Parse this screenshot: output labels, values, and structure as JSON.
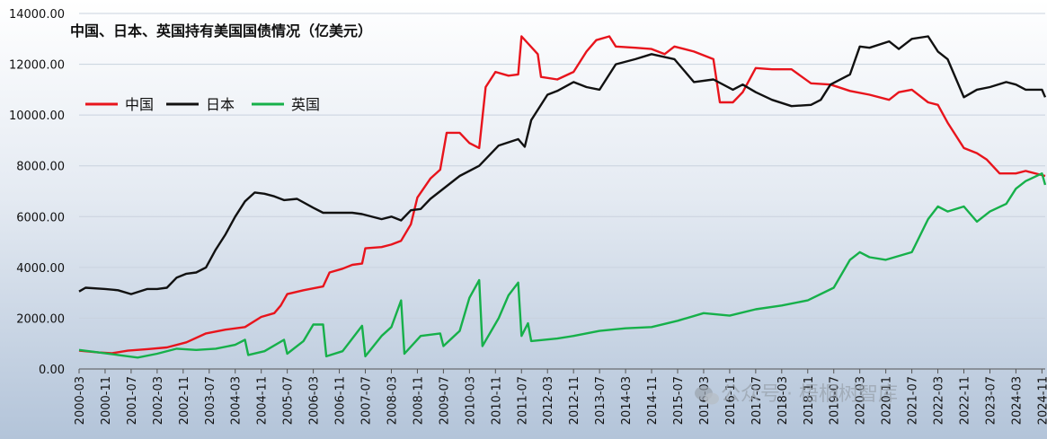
{
  "chart_data": {
    "type": "line",
    "title": "中国、日本、英国持有美国国债情况（亿美元）",
    "xlabel": "",
    "ylabel": "",
    "ylim": [
      0,
      14000
    ],
    "y_ticks": [
      "0.00",
      "2000.00",
      "4000.00",
      "6000.00",
      "8000.00",
      "10000.00",
      "12000.00",
      "14000.00"
    ],
    "x_tick_labels": [
      "2000-03",
      "2000-11",
      "2001-07",
      "2002-03",
      "2002-11",
      "2003-07",
      "2004-03",
      "2004-11",
      "2005-07",
      "2006-03",
      "2006-11",
      "2007-07",
      "2008-03",
      "2008-11",
      "2009-07",
      "2010-03",
      "2010-11",
      "2011-07",
      "2012-03",
      "2012-11",
      "2013-07",
      "2014-03",
      "2014-11",
      "2015-07",
      "2016-03",
      "2016-11",
      "2017-07",
      "2018-03",
      "2018-11",
      "2019-07",
      "2020-03",
      "2020-11",
      "2021-07",
      "2022-03",
      "2022-11",
      "2023-07",
      "2024-03",
      "2024-11"
    ],
    "x_range": [
      "2000-03",
      "2024-12"
    ],
    "grid": "horizontal",
    "legend_position": "top-left",
    "background": "gradient-blue",
    "series": [
      {
        "name": "中国",
        "color": "#e8141c",
        "points": [
          [
            "2000-03",
            720
          ],
          [
            "2000-09",
            650
          ],
          [
            "2001-01",
            620
          ],
          [
            "2001-06",
            720
          ],
          [
            "2001-12",
            780
          ],
          [
            "2002-06",
            850
          ],
          [
            "2002-12",
            1050
          ],
          [
            "2003-06",
            1400
          ],
          [
            "2003-12",
            1550
          ],
          [
            "2004-06",
            1650
          ],
          [
            "2004-11",
            2050
          ],
          [
            "2005-03",
            2200
          ],
          [
            "2005-05",
            2500
          ],
          [
            "2005-07",
            2950
          ],
          [
            "2005-12",
            3100
          ],
          [
            "2006-06",
            3250
          ],
          [
            "2006-08",
            3800
          ],
          [
            "2006-12",
            3950
          ],
          [
            "2007-03",
            4100
          ],
          [
            "2007-06",
            4150
          ],
          [
            "2007-07",
            4750
          ],
          [
            "2007-12",
            4800
          ],
          [
            "2008-03",
            4900
          ],
          [
            "2008-06",
            5050
          ],
          [
            "2008-09",
            5700
          ],
          [
            "2008-11",
            6750
          ],
          [
            "2009-03",
            7500
          ],
          [
            "2009-06",
            7850
          ],
          [
            "2009-08",
            9300
          ],
          [
            "2009-12",
            9300
          ],
          [
            "2010-03",
            8900
          ],
          [
            "2010-06",
            8700
          ],
          [
            "2010-08",
            11100
          ],
          [
            "2010-11",
            11700
          ],
          [
            "2011-03",
            11550
          ],
          [
            "2011-06",
            11600
          ],
          [
            "2011-07",
            13100
          ],
          [
            "2011-12",
            12400
          ],
          [
            "2012-01",
            11500
          ],
          [
            "2012-06",
            11400
          ],
          [
            "2012-11",
            11700
          ],
          [
            "2013-03",
            12500
          ],
          [
            "2013-06",
            12950
          ],
          [
            "2013-10",
            13100
          ],
          [
            "2013-12",
            12700
          ],
          [
            "2014-06",
            12650
          ],
          [
            "2014-11",
            12600
          ],
          [
            "2015-03",
            12400
          ],
          [
            "2015-06",
            12700
          ],
          [
            "2015-12",
            12500
          ],
          [
            "2016-06",
            12200
          ],
          [
            "2016-08",
            10500
          ],
          [
            "2016-12",
            10500
          ],
          [
            "2017-03",
            10900
          ],
          [
            "2017-07",
            11850
          ],
          [
            "2017-12",
            11800
          ],
          [
            "2018-06",
            11800
          ],
          [
            "2018-12",
            11250
          ],
          [
            "2019-06",
            11200
          ],
          [
            "2019-12",
            10950
          ],
          [
            "2020-06",
            10800
          ],
          [
            "2020-12",
            10600
          ],
          [
            "2021-03",
            10900
          ],
          [
            "2021-07",
            11000
          ],
          [
            "2021-12",
            10500
          ],
          [
            "2022-03",
            10400
          ],
          [
            "2022-06",
            9700
          ],
          [
            "2022-11",
            8700
          ],
          [
            "2023-03",
            8500
          ],
          [
            "2023-06",
            8250
          ],
          [
            "2023-10",
            7700
          ],
          [
            "2024-03",
            7700
          ],
          [
            "2024-06",
            7800
          ],
          [
            "2024-12",
            7600
          ]
        ]
      },
      {
        "name": "日本",
        "color": "#111111",
        "points": [
          [
            "2000-03",
            3050
          ],
          [
            "2000-05",
            3200
          ],
          [
            "2000-11",
            3150
          ],
          [
            "2001-03",
            3100
          ],
          [
            "2001-07",
            2950
          ],
          [
            "2001-12",
            3150
          ],
          [
            "2002-03",
            3150
          ],
          [
            "2002-06",
            3200
          ],
          [
            "2002-09",
            3600
          ],
          [
            "2002-12",
            3750
          ],
          [
            "2003-03",
            3800
          ],
          [
            "2003-06",
            4000
          ],
          [
            "2003-09",
            4700
          ],
          [
            "2003-12",
            5300
          ],
          [
            "2004-03",
            6000
          ],
          [
            "2004-06",
            6600
          ],
          [
            "2004-09",
            6950
          ],
          [
            "2004-12",
            6900
          ],
          [
            "2005-03",
            6800
          ],
          [
            "2005-06",
            6650
          ],
          [
            "2005-10",
            6700
          ],
          [
            "2006-03",
            6350
          ],
          [
            "2006-06",
            6150
          ],
          [
            "2006-11",
            6150
          ],
          [
            "2007-03",
            6150
          ],
          [
            "2007-06",
            6100
          ],
          [
            "2007-12",
            5900
          ],
          [
            "2008-03",
            6000
          ],
          [
            "2008-06",
            5850
          ],
          [
            "2008-09",
            6250
          ],
          [
            "2008-12",
            6300
          ],
          [
            "2009-03",
            6700
          ],
          [
            "2009-06",
            7000
          ],
          [
            "2009-12",
            7600
          ],
          [
            "2010-06",
            8000
          ],
          [
            "2010-12",
            8800
          ],
          [
            "2011-06",
            9050
          ],
          [
            "2011-08",
            8750
          ],
          [
            "2011-10",
            9800
          ],
          [
            "2012-03",
            10800
          ],
          [
            "2012-06",
            10950
          ],
          [
            "2012-11",
            11300
          ],
          [
            "2013-03",
            11100
          ],
          [
            "2013-07",
            11000
          ],
          [
            "2013-12",
            12000
          ],
          [
            "2014-06",
            12200
          ],
          [
            "2014-11",
            12400
          ],
          [
            "2015-06",
            12200
          ],
          [
            "2015-12",
            11300
          ],
          [
            "2016-06",
            11400
          ],
          [
            "2016-12",
            11000
          ],
          [
            "2017-03",
            11200
          ],
          [
            "2017-07",
            10900
          ],
          [
            "2017-12",
            10600
          ],
          [
            "2018-06",
            10350
          ],
          [
            "2018-12",
            10400
          ],
          [
            "2019-03",
            10600
          ],
          [
            "2019-06",
            11200
          ],
          [
            "2019-12",
            11600
          ],
          [
            "2020-03",
            12700
          ],
          [
            "2020-06",
            12650
          ],
          [
            "2020-12",
            12900
          ],
          [
            "2021-03",
            12600
          ],
          [
            "2021-07",
            13000
          ],
          [
            "2021-12",
            13100
          ],
          [
            "2022-03",
            12500
          ],
          [
            "2022-06",
            12200
          ],
          [
            "2022-11",
            10700
          ],
          [
            "2023-03",
            11000
          ],
          [
            "2023-07",
            11100
          ],
          [
            "2023-12",
            11300
          ],
          [
            "2024-03",
            11200
          ],
          [
            "2024-06",
            11000
          ],
          [
            "2024-11",
            11000
          ],
          [
            "2024-12",
            10700
          ]
        ]
      },
      {
        "name": "英国",
        "color": "#16b04a",
        "points": [
          [
            "2000-03",
            750
          ],
          [
            "2000-09",
            650
          ],
          [
            "2001-03",
            550
          ],
          [
            "2001-09",
            450
          ],
          [
            "2002-03",
            600
          ],
          [
            "2002-09",
            800
          ],
          [
            "2003-03",
            750
          ],
          [
            "2003-09",
            800
          ],
          [
            "2004-03",
            950
          ],
          [
            "2004-06",
            1150
          ],
          [
            "2004-07",
            550
          ],
          [
            "2004-12",
            700
          ],
          [
            "2005-06",
            1150
          ],
          [
            "2005-07",
            600
          ],
          [
            "2005-12",
            1100
          ],
          [
            "2006-03",
            1750
          ],
          [
            "2006-06",
            1750
          ],
          [
            "2006-07",
            500
          ],
          [
            "2006-12",
            700
          ],
          [
            "2007-06",
            1700
          ],
          [
            "2007-07",
            500
          ],
          [
            "2007-12",
            1300
          ],
          [
            "2008-03",
            1650
          ],
          [
            "2008-06",
            2700
          ],
          [
            "2008-07",
            600
          ],
          [
            "2008-12",
            1300
          ],
          [
            "2009-06",
            1400
          ],
          [
            "2009-07",
            900
          ],
          [
            "2009-12",
            1500
          ],
          [
            "2010-03",
            2800
          ],
          [
            "2010-06",
            3500
          ],
          [
            "2010-07",
            900
          ],
          [
            "2010-12",
            2000
          ],
          [
            "2011-03",
            2900
          ],
          [
            "2011-06",
            3400
          ],
          [
            "2011-07",
            1300
          ],
          [
            "2011-09",
            1800
          ],
          [
            "2011-10",
            1100
          ],
          [
            "2012-06",
            1200
          ],
          [
            "2012-11",
            1300
          ],
          [
            "2013-07",
            1500
          ],
          [
            "2014-03",
            1600
          ],
          [
            "2014-11",
            1650
          ],
          [
            "2015-07",
            1900
          ],
          [
            "2016-03",
            2200
          ],
          [
            "2016-11",
            2100
          ],
          [
            "2017-07",
            2350
          ],
          [
            "2018-03",
            2500
          ],
          [
            "2018-11",
            2700
          ],
          [
            "2019-07",
            3200
          ],
          [
            "2019-12",
            4300
          ],
          [
            "2020-03",
            4600
          ],
          [
            "2020-06",
            4400
          ],
          [
            "2020-11",
            4300
          ],
          [
            "2021-07",
            4600
          ],
          [
            "2021-12",
            5900
          ],
          [
            "2022-03",
            6400
          ],
          [
            "2022-06",
            6200
          ],
          [
            "2022-11",
            6400
          ],
          [
            "2023-03",
            5800
          ],
          [
            "2023-07",
            6200
          ],
          [
            "2023-12",
            6500
          ],
          [
            "2024-03",
            7100
          ],
          [
            "2024-06",
            7400
          ],
          [
            "2024-11",
            7700
          ],
          [
            "2024-12",
            7250
          ]
        ]
      }
    ]
  },
  "watermark": {
    "icon": "wechat-icon",
    "text": "公众号 · 梧桐树智库"
  }
}
